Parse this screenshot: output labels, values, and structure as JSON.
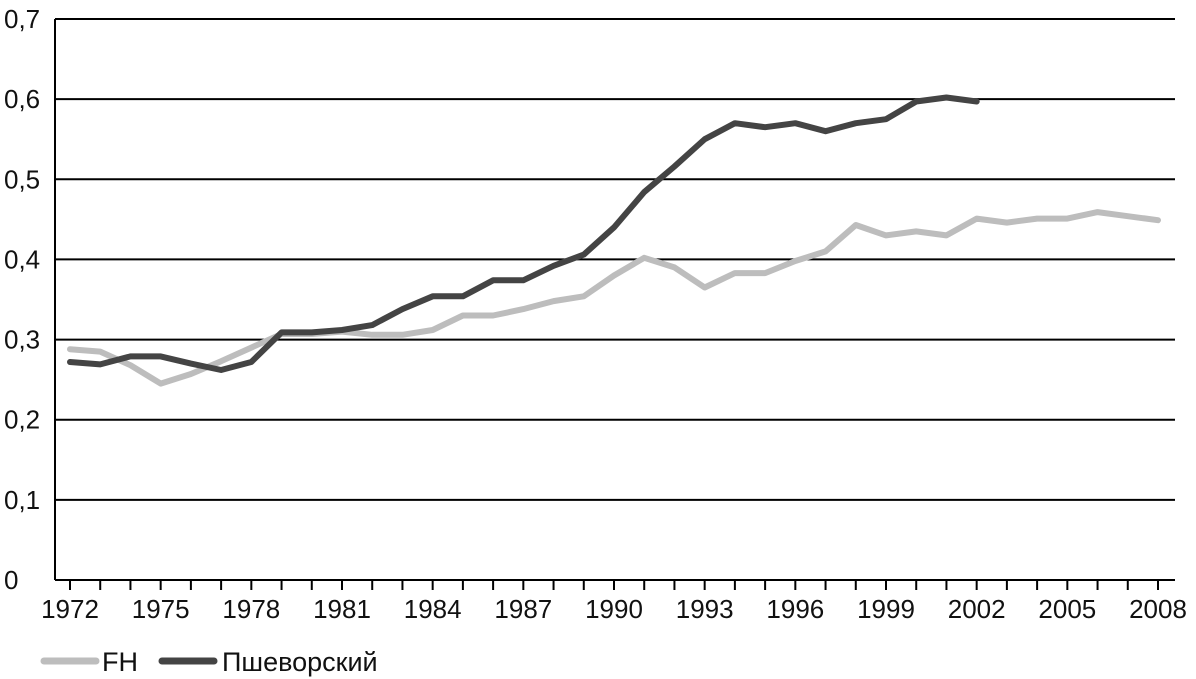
{
  "chart_data": {
    "type": "line",
    "title": "",
    "xlabel": "",
    "ylabel": "",
    "ylim": [
      0,
      0.7
    ],
    "xlim": [
      1972,
      2008
    ],
    "y_ticks": [
      "0",
      "0,1",
      "0,2",
      "0,3",
      "0,4",
      "0,5",
      "0,6",
      "0,7"
    ],
    "x_ticks": [
      "1972",
      "1975",
      "1978",
      "1981",
      "1984",
      "1987",
      "1990",
      "1993",
      "1996",
      "1999",
      "2002",
      "2005",
      "2008"
    ],
    "grid": "horizontal",
    "legend_position": "bottom-left",
    "series": [
      {
        "name": "FH",
        "color": "#bdbdbd",
        "points": [
          [
            1972,
            0.288
          ],
          [
            1973,
            0.285
          ],
          [
            1974,
            0.268
          ],
          [
            1975,
            0.245
          ],
          [
            1976,
            0.257
          ],
          [
            1977,
            0.273
          ],
          [
            1978,
            0.29
          ],
          [
            1979,
            0.307
          ],
          [
            1980,
            0.307
          ],
          [
            1981,
            0.31
          ],
          [
            1982,
            0.306
          ],
          [
            1983,
            0.306
          ],
          [
            1984,
            0.312
          ],
          [
            1985,
            0.33
          ],
          [
            1986,
            0.33
          ],
          [
            1987,
            0.338
          ],
          [
            1988,
            0.348
          ],
          [
            1989,
            0.354
          ],
          [
            1990,
            0.38
          ],
          [
            1991,
            0.402
          ],
          [
            1992,
            0.39
          ],
          [
            1993,
            0.365
          ],
          [
            1994,
            0.383
          ],
          [
            1995,
            0.383
          ],
          [
            1996,
            0.398
          ],
          [
            1997,
            0.41
          ],
          [
            1998,
            0.443
          ],
          [
            1999,
            0.43
          ],
          [
            2000,
            0.435
          ],
          [
            2001,
            0.43
          ],
          [
            2002,
            0.451
          ],
          [
            2003,
            0.446
          ],
          [
            2004,
            0.451
          ],
          [
            2005,
            0.451
          ],
          [
            2006,
            0.459
          ],
          [
            2007,
            0.454
          ],
          [
            2008,
            0.449
          ]
        ]
      },
      {
        "name": "Пшеворский",
        "color": "#444444",
        "points": [
          [
            1972,
            0.272
          ],
          [
            1973,
            0.269
          ],
          [
            1974,
            0.279
          ],
          [
            1975,
            0.279
          ],
          [
            1976,
            0.27
          ],
          [
            1977,
            0.262
          ],
          [
            1978,
            0.272
          ],
          [
            1979,
            0.309
          ],
          [
            1980,
            0.309
          ],
          [
            1981,
            0.312
          ],
          [
            1982,
            0.318
          ],
          [
            1983,
            0.338
          ],
          [
            1984,
            0.354
          ],
          [
            1985,
            0.354
          ],
          [
            1986,
            0.374
          ],
          [
            1987,
            0.374
          ],
          [
            1988,
            0.392
          ],
          [
            1989,
            0.406
          ],
          [
            1990,
            0.44
          ],
          [
            1991,
            0.484
          ],
          [
            1992,
            0.516
          ],
          [
            1993,
            0.55
          ],
          [
            1994,
            0.57
          ],
          [
            1995,
            0.565
          ],
          [
            1996,
            0.57
          ],
          [
            1997,
            0.56
          ],
          [
            1998,
            0.57
          ],
          [
            1999,
            0.575
          ],
          [
            2000,
            0.597
          ],
          [
            2001,
            0.602
          ],
          [
            2002,
            0.597
          ]
        ]
      }
    ]
  }
}
